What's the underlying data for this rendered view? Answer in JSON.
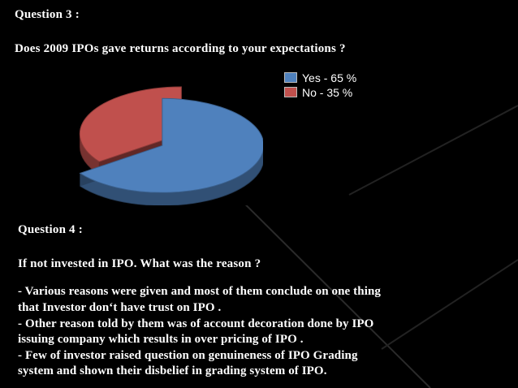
{
  "q3": {
    "title": "Question 3 :",
    "question": "Does 2009 IPOs gave returns according to your expectations ?"
  },
  "chart_data": {
    "type": "pie",
    "categories": [
      "Yes",
      "No"
    ],
    "values": [
      65,
      35
    ],
    "colors": [
      "#4f81bd",
      "#c0504d"
    ],
    "legend": [
      "Yes -  65 %",
      "No  -  35 %"
    ],
    "legend_position": "right",
    "style": "3d-exploded"
  },
  "q4": {
    "title": "Question 4 :",
    "question": "If not invested in IPO. What was the reason ?",
    "lines": [
      "- Various reasons were given and most of them conclude on one thing",
      "that Investor don‘t have trust on IPO .",
      "- Other reason told by them was of account decoration done by IPO",
      "issuing company which results in over pricing of IPO .",
      "- Few of investor raised question on genuineness of IPO Grading",
      "system and shown their disbelief in grading system of IPO."
    ]
  }
}
